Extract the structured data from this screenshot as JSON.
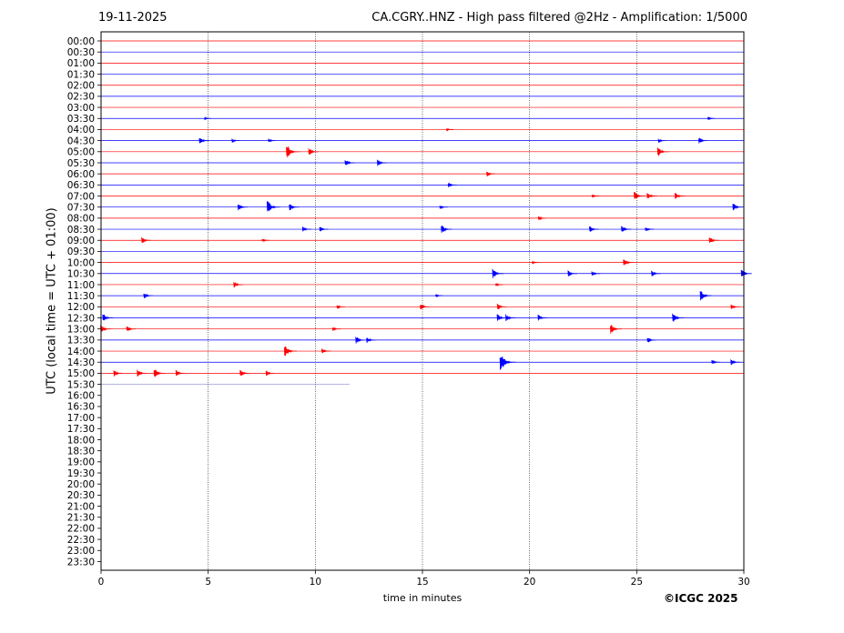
{
  "header": {
    "date": "19-11-2025",
    "title": "CA.CGRY..HNZ - High pass filtered @2Hz - Amplification: 1/5000"
  },
  "footer": {
    "copyright": "©ICGC 2025"
  },
  "chart_data": {
    "type": "line",
    "title": "CA.CGRY..HNZ - High pass filtered @2Hz - Amplification: 1/5000",
    "xlabel": "time in minutes",
    "ylabel": "UTC (local time = UTC + 01:00)",
    "xlim": [
      0,
      30
    ],
    "xticks": [
      0,
      5,
      10,
      15,
      20,
      25,
      30
    ],
    "vertical_gridlines": [
      5,
      10,
      15,
      20,
      25
    ],
    "row_labels": [
      "00:00",
      "00:30",
      "01:00",
      "01:30",
      "02:00",
      "02:30",
      "03:00",
      "03:30",
      "04:00",
      "04:30",
      "05:00",
      "05:30",
      "06:00",
      "06:30",
      "07:00",
      "07:30",
      "08:00",
      "08:30",
      "09:00",
      "09:30",
      "10:00",
      "10:30",
      "11:00",
      "11:30",
      "12:00",
      "12:30",
      "13:00",
      "13:30",
      "14:00",
      "14:30",
      "15:00",
      "15:30",
      "16:00",
      "16:30",
      "17:00",
      "17:30",
      "18:00",
      "18:30",
      "19:00",
      "19:30",
      "20:00",
      "20:30",
      "21:00",
      "21:30",
      "22:00",
      "22:30",
      "23:00",
      "23:30"
    ],
    "colors": {
      "odd_hour_rows": "#ff0000",
      "half_hour_rows": "#0000ff",
      "last_row": "#8a8ad8"
    },
    "last_row_end_minute": 11.6,
    "bursts": [
      {
        "row": "03:30",
        "t": 4.9,
        "amp": 0.12
      },
      {
        "row": "03:30",
        "t": 28.4,
        "amp": 0.15
      },
      {
        "row": "04:00",
        "t": 16.2,
        "amp": 0.12
      },
      {
        "row": "04:30",
        "t": 4.7,
        "amp": 0.35
      },
      {
        "row": "04:30",
        "t": 6.2,
        "amp": 0.2
      },
      {
        "row": "04:30",
        "t": 7.9,
        "amp": 0.2
      },
      {
        "row": "04:30",
        "t": 26.1,
        "amp": 0.2
      },
      {
        "row": "04:30",
        "t": 28.0,
        "amp": 0.3
      },
      {
        "row": "05:00",
        "t": 8.8,
        "amp": 0.6
      },
      {
        "row": "05:00",
        "t": 9.8,
        "amp": 0.35
      },
      {
        "row": "05:00",
        "t": 26.1,
        "amp": 0.45
      },
      {
        "row": "05:30",
        "t": 11.5,
        "amp": 0.35
      },
      {
        "row": "05:30",
        "t": 13.0,
        "amp": 0.3
      },
      {
        "row": "06:00",
        "t": 18.1,
        "amp": 0.25
      },
      {
        "row": "06:30",
        "t": 16.3,
        "amp": 0.25
      },
      {
        "row": "07:00",
        "t": 23.0,
        "amp": 0.15
      },
      {
        "row": "07:00",
        "t": 25.0,
        "amp": 0.4
      },
      {
        "row": "07:00",
        "t": 25.6,
        "amp": 0.35
      },
      {
        "row": "07:00",
        "t": 26.9,
        "amp": 0.35
      },
      {
        "row": "07:30",
        "t": 6.5,
        "amp": 0.35
      },
      {
        "row": "07:30",
        "t": 7.9,
        "amp": 0.6
      },
      {
        "row": "07:30",
        "t": 8.9,
        "amp": 0.35
      },
      {
        "row": "07:30",
        "t": 15.9,
        "amp": 0.2
      },
      {
        "row": "07:30",
        "t": 29.6,
        "amp": 0.35
      },
      {
        "row": "08:00",
        "t": 20.5,
        "amp": 0.2
      },
      {
        "row": "08:30",
        "t": 9.5,
        "amp": 0.25
      },
      {
        "row": "08:30",
        "t": 10.3,
        "amp": 0.25
      },
      {
        "row": "08:30",
        "t": 16.0,
        "amp": 0.4
      },
      {
        "row": "08:30",
        "t": 22.9,
        "amp": 0.3
      },
      {
        "row": "08:30",
        "t": 24.4,
        "amp": 0.35
      },
      {
        "row": "08:30",
        "t": 25.5,
        "amp": 0.25
      },
      {
        "row": "09:00",
        "t": 2.0,
        "amp": 0.3
      },
      {
        "row": "09:00",
        "t": 7.6,
        "amp": 0.15
      },
      {
        "row": "09:00",
        "t": 28.5,
        "amp": 0.35
      },
      {
        "row": "10:00",
        "t": 20.2,
        "amp": 0.15
      },
      {
        "row": "10:00",
        "t": 24.5,
        "amp": 0.4
      },
      {
        "row": "10:30",
        "t": 18.4,
        "amp": 0.45
      },
      {
        "row": "10:30",
        "t": 21.9,
        "amp": 0.3
      },
      {
        "row": "10:30",
        "t": 23.0,
        "amp": 0.25
      },
      {
        "row": "10:30",
        "t": 25.8,
        "amp": 0.3
      },
      {
        "row": "10:30",
        "t": 30.0,
        "amp": 0.4
      },
      {
        "row": "11:00",
        "t": 6.3,
        "amp": 0.3
      },
      {
        "row": "11:00",
        "t": 18.5,
        "amp": 0.15
      },
      {
        "row": "11:30",
        "t": 2.1,
        "amp": 0.3
      },
      {
        "row": "11:30",
        "t": 15.7,
        "amp": 0.15
      },
      {
        "row": "11:30",
        "t": 28.1,
        "amp": 0.5
      },
      {
        "row": "12:00",
        "t": 11.1,
        "amp": 0.2
      },
      {
        "row": "12:00",
        "t": 15.0,
        "amp": 0.3
      },
      {
        "row": "12:00",
        "t": 18.6,
        "amp": 0.3
      },
      {
        "row": "12:00",
        "t": 29.5,
        "amp": 0.25
      },
      {
        "row": "12:30",
        "t": 0.2,
        "amp": 0.4
      },
      {
        "row": "12:30",
        "t": 18.6,
        "amp": 0.35
      },
      {
        "row": "12:30",
        "t": 19.0,
        "amp": 0.35
      },
      {
        "row": "12:30",
        "t": 20.5,
        "amp": 0.3
      },
      {
        "row": "12:30",
        "t": 26.8,
        "amp": 0.45
      },
      {
        "row": "13:00",
        "t": 0.1,
        "amp": 0.4
      },
      {
        "row": "13:00",
        "t": 1.3,
        "amp": 0.3
      },
      {
        "row": "13:00",
        "t": 10.9,
        "amp": 0.2
      },
      {
        "row": "13:00",
        "t": 23.9,
        "amp": 0.45
      },
      {
        "row": "13:30",
        "t": 12.0,
        "amp": 0.35
      },
      {
        "row": "13:30",
        "t": 12.5,
        "amp": 0.3
      },
      {
        "row": "13:30",
        "t": 25.6,
        "amp": 0.3
      },
      {
        "row": "14:00",
        "t": 8.7,
        "amp": 0.55
      },
      {
        "row": "14:00",
        "t": 10.4,
        "amp": 0.25
      },
      {
        "row": "14:30",
        "t": 18.8,
        "amp": 0.8
      },
      {
        "row": "14:30",
        "t": 28.6,
        "amp": 0.25
      },
      {
        "row": "14:30",
        "t": 29.5,
        "amp": 0.3
      },
      {
        "row": "15:00",
        "t": 0.7,
        "amp": 0.3
      },
      {
        "row": "15:00",
        "t": 1.8,
        "amp": 0.35
      },
      {
        "row": "15:00",
        "t": 2.6,
        "amp": 0.45
      },
      {
        "row": "15:00",
        "t": 3.6,
        "amp": 0.3
      },
      {
        "row": "15:00",
        "t": 6.6,
        "amp": 0.35
      },
      {
        "row": "15:00",
        "t": 7.8,
        "amp": 0.25
      }
    ]
  }
}
